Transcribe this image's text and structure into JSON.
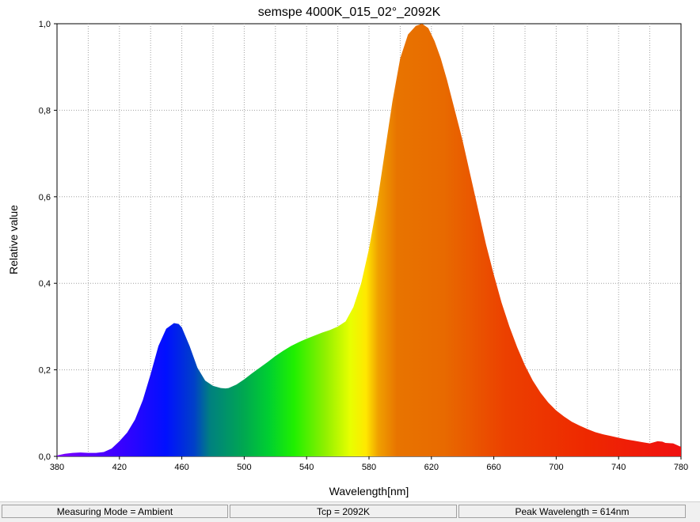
{
  "chart_data": {
    "type": "area",
    "title": "semspe 4000K_015_02°_2092K",
    "xlabel": "Wavelength[nm]",
    "ylabel": "Relative value",
    "xlim": [
      380,
      780
    ],
    "ylim": [
      0,
      1.0
    ],
    "x_ticks": [
      "380",
      "420",
      "460",
      "500",
      "540",
      "580",
      "620",
      "660",
      "700",
      "740",
      "780"
    ],
    "y_ticks": [
      "0,0",
      "0,2",
      "0,4",
      "0,6",
      "0,8",
      "1,0"
    ],
    "grid": true,
    "fill": "visible-spectrum gradient",
    "x": [
      380,
      385,
      390,
      395,
      400,
      405,
      410,
      415,
      420,
      425,
      430,
      435,
      440,
      445,
      450,
      455,
      458,
      460,
      465,
      470,
      475,
      480,
      485,
      488,
      490,
      495,
      500,
      505,
      510,
      515,
      520,
      525,
      530,
      535,
      540,
      545,
      550,
      555,
      560,
      565,
      570,
      575,
      580,
      585,
      590,
      595,
      600,
      605,
      610,
      614,
      618,
      622,
      626,
      630,
      635,
      640,
      645,
      650,
      655,
      660,
      665,
      670,
      675,
      680,
      685,
      690,
      695,
      700,
      705,
      710,
      715,
      720,
      725,
      730,
      735,
      740,
      745,
      750,
      755,
      760,
      765,
      768,
      770,
      775,
      780
    ],
    "values": [
      0.002,
      0.006,
      0.008,
      0.009,
      0.008,
      0.008,
      0.01,
      0.018,
      0.035,
      0.055,
      0.085,
      0.13,
      0.19,
      0.255,
      0.295,
      0.308,
      0.306,
      0.298,
      0.255,
      0.205,
      0.175,
      0.163,
      0.158,
      0.157,
      0.158,
      0.166,
      0.178,
      0.192,
      0.205,
      0.218,
      0.232,
      0.244,
      0.255,
      0.264,
      0.272,
      0.279,
      0.286,
      0.292,
      0.3,
      0.312,
      0.345,
      0.4,
      0.48,
      0.58,
      0.7,
      0.82,
      0.92,
      0.975,
      0.995,
      1.0,
      0.99,
      0.96,
      0.92,
      0.87,
      0.8,
      0.73,
      0.65,
      0.57,
      0.49,
      0.42,
      0.355,
      0.3,
      0.252,
      0.21,
      0.175,
      0.147,
      0.124,
      0.106,
      0.092,
      0.08,
      0.071,
      0.063,
      0.056,
      0.051,
      0.047,
      0.043,
      0.039,
      0.036,
      0.033,
      0.03,
      0.035,
      0.034,
      0.031,
      0.03,
      0.022
    ]
  },
  "status": {
    "mode": "Measuring Mode = Ambient",
    "tcp": "Tcp = 2092K",
    "peak": "Peak Wavelength = 614nm"
  }
}
